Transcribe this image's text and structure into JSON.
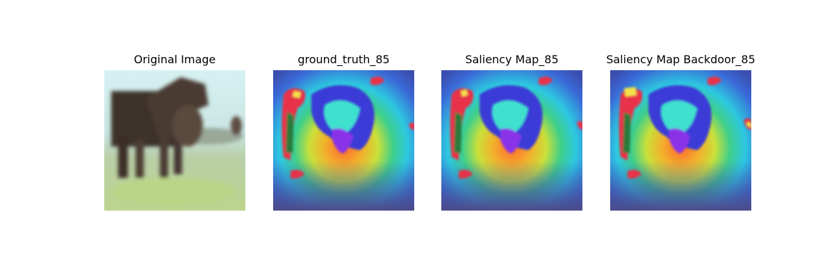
{
  "figure": {
    "panels": [
      {
        "title": "Original Image",
        "image": "photo of a dark brown horse standing on grass with a foal"
      },
      {
        "title": "ground_truth_85",
        "image": "saliency heatmap overlay on horse image"
      },
      {
        "title": "Saliency Map_85",
        "image": "saliency heatmap overlay on horse image"
      },
      {
        "title": "Saliency Map Backdoor_85",
        "image": "saliency heatmap overlay on horse image with yellow highlights"
      }
    ]
  },
  "colors": {
    "sky": "#cfecee",
    "grass": "#b8cf8f",
    "horse": "#3b2f27",
    "heat_red": "#e8304a",
    "heat_yellow": "#f3e24a",
    "heat_cyan": "#3fe0cf",
    "heat_blue": "#3b55d8",
    "heat_purple": "#8a33e8"
  }
}
